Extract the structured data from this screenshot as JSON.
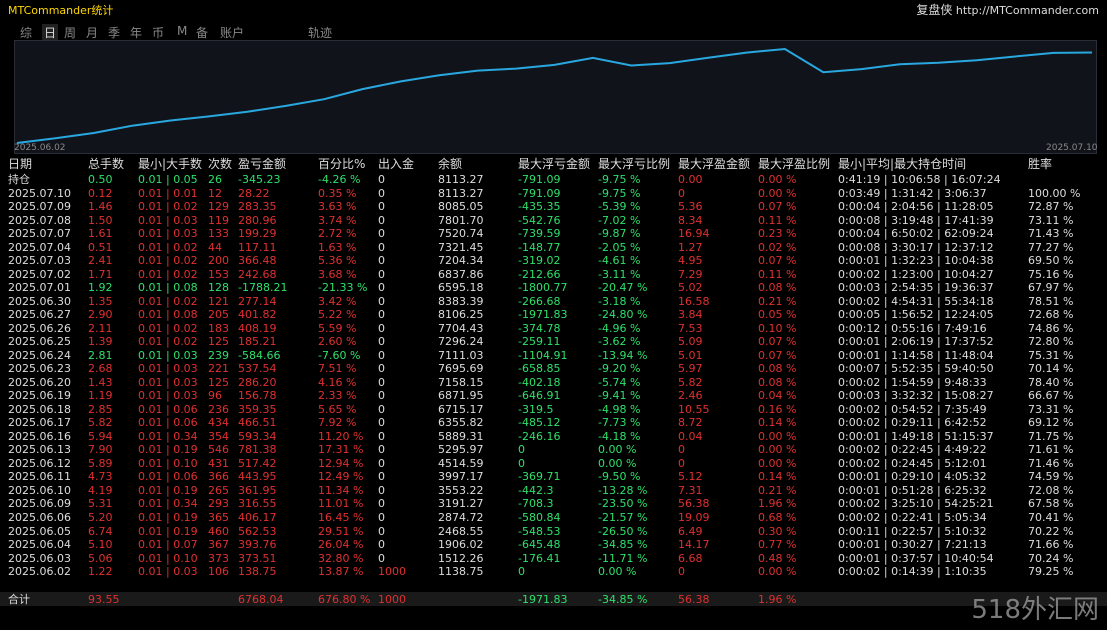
{
  "header": {
    "title": "MTCommander统计",
    "brand": "复盘侠",
    "url": "http://MTCommander.com"
  },
  "tabs": [
    "综",
    "日",
    "周",
    "月",
    "季",
    "年",
    "币",
    "M",
    "备",
    "账户",
    "轨迹"
  ],
  "chart": {
    "start_date": "2025.06.02",
    "end_date": "2025.07.10"
  },
  "table": {
    "columns": [
      "日期",
      "总手数",
      "最小|大手数",
      "次数",
      "盈亏金额",
      "百分比%",
      "出入金",
      "余额",
      "最大浮亏金额",
      "最大浮亏比例",
      "最大浮盈金额",
      "最大浮盈比例",
      "最小|平均|最大持仓时间",
      "胜率"
    ],
    "rows": [
      [
        "持仓",
        "0.50",
        "0.01 | 0.05",
        "26",
        "-345.23",
        "-4.26 %",
        "0",
        "8113.27",
        "-791.09",
        "-9.75 %",
        "0.00",
        "0.00 %",
        "0:41:19 | 10:06:58 | 16:07:24",
        null
      ],
      [
        "2025.07.10",
        "0.12",
        "0.01 | 0.01",
        "12",
        "28.22",
        "0.35 %",
        "0",
        "8113.27",
        "-791.09",
        "-9.75 %",
        "0",
        "0.00 %",
        "0:03:49 | 1:31:42 | 3:06:37",
        "100.00 %"
      ],
      [
        "2025.07.09",
        "1.46",
        "0.01 | 0.02",
        "129",
        "283.35",
        "3.63 %",
        "0",
        "8085.05",
        "-435.35",
        "-5.39 %",
        "5.36",
        "0.07 %",
        "0:00:04 | 2:04:56 | 11:28:05",
        "72.87 %"
      ],
      [
        "2025.07.08",
        "1.50",
        "0.01 | 0.03",
        "119",
        "280.96",
        "3.74 %",
        "0",
        "7801.70",
        "-542.76",
        "-7.02 %",
        "8.34",
        "0.11 %",
        "0:00:08 | 3:19:48 | 17:41:39",
        "73.11 %"
      ],
      [
        "2025.07.07",
        "1.61",
        "0.01 | 0.03",
        "133",
        "199.29",
        "2.72 %",
        "0",
        "7520.74",
        "-739.59",
        "-9.87 %",
        "16.94",
        "0.23 %",
        "0:00:04 | 6:50:02 | 62:09:24",
        "71.43 %"
      ],
      [
        "2025.07.04",
        "0.51",
        "0.01 | 0.02",
        "44",
        "117.11",
        "1.63 %",
        "0",
        "7321.45",
        "-148.77",
        "-2.05 %",
        "1.27",
        "0.02 %",
        "0:00:08 | 3:30:17 | 12:37:12",
        "77.27 %"
      ],
      [
        "2025.07.03",
        "2.41",
        "0.01 | 0.02",
        "200",
        "366.48",
        "5.36 %",
        "0",
        "7204.34",
        "-319.02",
        "-4.61 %",
        "4.95",
        "0.07 %",
        "0:00:01 | 1:32:23 | 10:04:38",
        "69.50 %"
      ],
      [
        "2025.07.02",
        "1.71",
        "0.01 | 0.02",
        "153",
        "242.68",
        "3.68 %",
        "0",
        "6837.86",
        "-212.66",
        "-3.11 %",
        "7.29",
        "0.11 %",
        "0:00:02 | 1:23:00 | 10:04:27",
        "75.16 %"
      ],
      [
        "2025.07.01",
        "1.92",
        "0.01 | 0.08",
        "128",
        "-1788.21",
        "-21.33 %",
        "0",
        "6595.18",
        "-1800.77",
        "-20.47 %",
        "5.02",
        "0.08 %",
        "0:00:03 | 2:54:35 | 19:36:37",
        "67.97 %"
      ],
      [
        "2025.06.30",
        "1.35",
        "0.01 | 0.02",
        "121",
        "277.14",
        "3.42 %",
        "0",
        "8383.39",
        "-266.68",
        "-3.18 %",
        "16.58",
        "0.21 %",
        "0:00:02 | 4:54:31 | 55:34:18",
        "78.51 %"
      ],
      [
        "2025.06.27",
        "2.90",
        "0.01 | 0.08",
        "205",
        "401.82",
        "5.22 %",
        "0",
        "8106.25",
        "-1971.83",
        "-24.80 %",
        "3.84",
        "0.05 %",
        "0:00:05 | 1:56:52 | 12:24:05",
        "72.68 %"
      ],
      [
        "2025.06.26",
        "2.11",
        "0.01 | 0.02",
        "183",
        "408.19",
        "5.59 %",
        "0",
        "7704.43",
        "-374.78",
        "-4.96 %",
        "7.53",
        "0.10 %",
        "0:00:12 | 0:55:16 | 7:49:16",
        "74.86 %"
      ],
      [
        "2025.06.25",
        "1.39",
        "0.01 | 0.02",
        "125",
        "185.21",
        "2.60 %",
        "0",
        "7296.24",
        "-259.11",
        "-3.62 %",
        "5.09",
        "0.07 %",
        "0:00:01 | 2:06:19 | 17:37:52",
        "72.80 %"
      ],
      [
        "2025.06.24",
        "2.81",
        "0.01 | 0.03",
        "239",
        "-584.66",
        "-7.60 %",
        "0",
        "7111.03",
        "-1104.91",
        "-13.94 %",
        "5.01",
        "0.07 %",
        "0:00:01 | 1:14:58 | 11:48:04",
        "75.31 %"
      ],
      [
        "2025.06.23",
        "2.68",
        "0.01 | 0.03",
        "221",
        "537.54",
        "7.51 %",
        "0",
        "7695.69",
        "-658.85",
        "-9.20 %",
        "5.97",
        "0.08 %",
        "0:00:07 | 5:52:35 | 59:40:50",
        "70.14 %"
      ],
      [
        "2025.06.20",
        "1.43",
        "0.01 | 0.03",
        "125",
        "286.20",
        "4.16 %",
        "0",
        "7158.15",
        "-402.18",
        "-5.74 %",
        "5.82",
        "0.08 %",
        "0:00:02 | 1:54:59 | 9:48:33",
        "78.40 %"
      ],
      [
        "2025.06.19",
        "1.19",
        "0.01 | 0.03",
        "96",
        "156.78",
        "2.33 %",
        "0",
        "6871.95",
        "-646.91",
        "-9.41 %",
        "2.46",
        "0.04 %",
        "0:00:03 | 3:32:32 | 15:08:27",
        "66.67 %"
      ],
      [
        "2025.06.18",
        "2.85",
        "0.01 | 0.06",
        "236",
        "359.35",
        "5.65 %",
        "0",
        "6715.17",
        "-319.5",
        "-4.98 %",
        "10.55",
        "0.16 %",
        "0:00:02 | 0:54:52 | 7:35:49",
        "73.31 %"
      ],
      [
        "2025.06.17",
        "5.82",
        "0.01 | 0.06",
        "434",
        "466.51",
        "7.92 %",
        "0",
        "6355.82",
        "-485.12",
        "-7.73 %",
        "8.72",
        "0.14 %",
        "0:00:02 | 0:29:11 | 6:42:52",
        "69.12 %"
      ],
      [
        "2025.06.16",
        "5.94",
        "0.01 | 0.34",
        "354",
        "593.34",
        "11.20 %",
        "0",
        "5889.31",
        "-246.16",
        "-4.18 %",
        "0.04",
        "0.00 %",
        "0:00:01 | 1:49:18 | 51:15:37",
        "71.75 %"
      ],
      [
        "2025.06.13",
        "7.90",
        "0.01 | 0.19",
        "546",
        "781.38",
        "17.31 %",
        "0",
        "5295.97",
        "0",
        "0.00 %",
        "0",
        "0.00 %",
        "0:00:02 | 0:22:45 | 4:49:22",
        "71.61 %"
      ],
      [
        "2025.06.12",
        "5.89",
        "0.01 | 0.10",
        "431",
        "517.42",
        "12.94 %",
        "0",
        "4514.59",
        "0",
        "0.00 %",
        "0",
        "0.00 %",
        "0:00:02 | 0:24:45 | 5:12:01",
        "71.46 %"
      ],
      [
        "2025.06.11",
        "4.73",
        "0.01 | 0.06",
        "366",
        "443.95",
        "12.49 %",
        "0",
        "3997.17",
        "-369.71",
        "-9.50 %",
        "5.12",
        "0.14 %",
        "0:00:01 | 0:29:10 | 4:05:32",
        "74.59 %"
      ],
      [
        "2025.06.10",
        "4.19",
        "0.01 | 0.19",
        "265",
        "361.95",
        "11.34 %",
        "0",
        "3553.22",
        "-442.3",
        "-13.28 %",
        "7.31",
        "0.21 %",
        "0:00:01 | 0:51:28 | 6:25:32",
        "72.08 %"
      ],
      [
        "2025.06.09",
        "5.31",
        "0.01 | 0.34",
        "293",
        "316.55",
        "11.01 %",
        "0",
        "3191.27",
        "-708.3",
        "-23.50 %",
        "56.38",
        "1.96 %",
        "0:00:02 | 3:25:10 | 54:25:21",
        "67.58 %"
      ],
      [
        "2025.06.06",
        "5.20",
        "0.01 | 0.19",
        "365",
        "406.17",
        "16.45 %",
        "0",
        "2874.72",
        "-580.84",
        "-21.57 %",
        "19.09",
        "0.68 %",
        "0:00:02 | 0:22:41 | 5:05:34",
        "70.41 %"
      ],
      [
        "2025.06.05",
        "6.74",
        "0.01 | 0.19",
        "460",
        "562.53",
        "29.51 %",
        "0",
        "2468.55",
        "-548.53",
        "-26.50 %",
        "6.49",
        "0.30 %",
        "0:00:11 | 0:22:57 | 5:10:32",
        "70.22 %"
      ],
      [
        "2025.06.04",
        "5.10",
        "0.01 | 0.07",
        "367",
        "393.76",
        "26.04 %",
        "0",
        "1906.02",
        "-645.48",
        "-34.85 %",
        "14.17",
        "0.77 %",
        "0:00:01 | 0:30:27 | 7:21:13",
        "71.66 %"
      ],
      [
        "2025.06.03",
        "5.06",
        "0.01 | 0.10",
        "373",
        "373.51",
        "32.80 %",
        "0",
        "1512.26",
        "-176.41",
        "-11.71 %",
        "6.68",
        "0.48 %",
        "0:00:01 | 0:37:57 | 10:40:54",
        "70.24 %"
      ],
      [
        "2025.06.02",
        "1.22",
        "0.01 | 0.03",
        "106",
        "138.75",
        "13.87 %",
        "1000",
        "1138.75",
        "0",
        "0.00 %",
        "0",
        "0.00 %",
        "0:00:02 | 0:14:39 | 1:10:35",
        "79.25 %"
      ]
    ],
    "total": [
      "合计",
      "93.55",
      null,
      null,
      "6768.04",
      "676.80 %",
      "1000",
      null,
      "-1971.83",
      "-34.85 %",
      "56.38",
      "1.96 %",
      null,
      null
    ]
  },
  "watermark": "518外汇网"
}
